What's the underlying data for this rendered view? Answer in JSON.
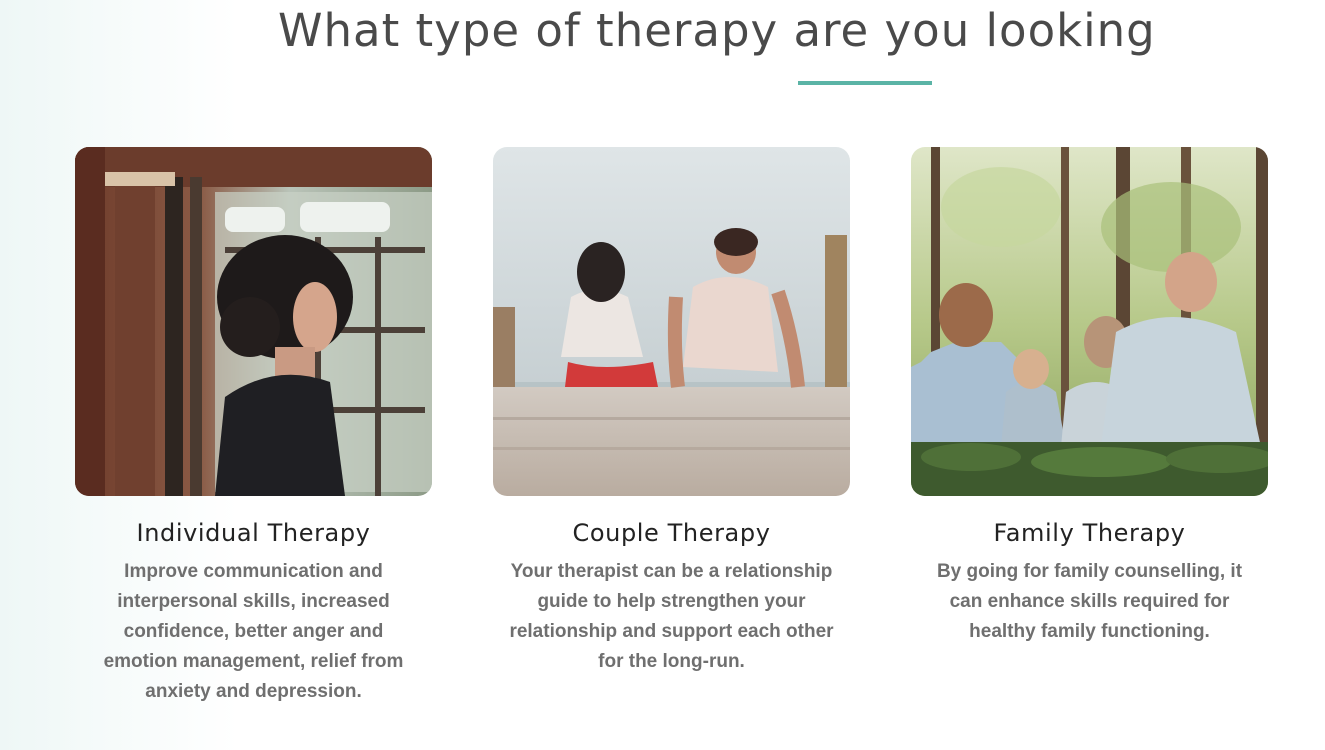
{
  "section": {
    "heading": "What type of therapy are you looking",
    "accent_color": "#5bb4a6"
  },
  "cards": [
    {
      "title": "Individual Therapy",
      "description": "Improve communication and interpersonal skills, increased confidence, better anger and emotion management, relief from anxiety and depression."
    },
    {
      "title": "Couple Therapy",
      "description": "Your therapist can be a relationship guide to help strengthen your relationship and support each other for the long-run."
    },
    {
      "title": "Family Therapy",
      "description": "By going for family counselling, it can enhance skills required for healthy family functioning."
    }
  ]
}
